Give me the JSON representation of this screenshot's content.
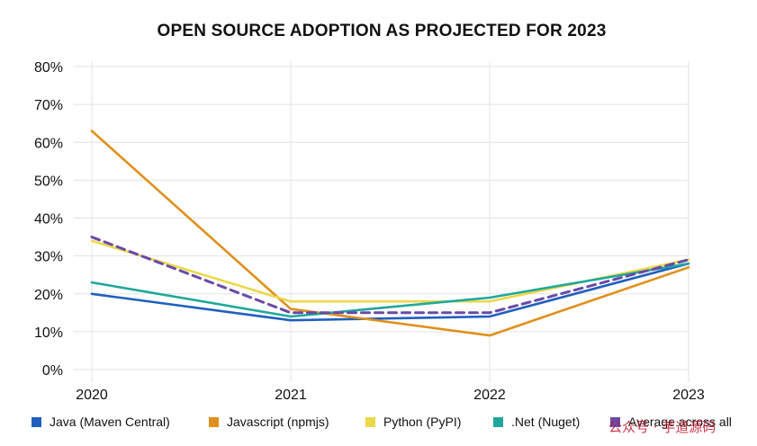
{
  "chart_data": {
    "type": "line",
    "title": "OPEN SOURCE ADOPTION AS PROJECTED FOR 2023",
    "x": [
      "2020",
      "2021",
      "2022",
      "2023"
    ],
    "ylim": [
      0,
      80
    ],
    "yticks": [
      "0%",
      "10%",
      "20%",
      "30%",
      "40%",
      "50%",
      "60%",
      "70%",
      "80%"
    ],
    "xlabel": "",
    "ylabel": "",
    "grid": true,
    "legend_position": "bottom",
    "series": [
      {
        "name": "Java (Maven Central)",
        "values": [
          20,
          13,
          14,
          28
        ],
        "color": "#1f5fbf",
        "dashed": false
      },
      {
        "name": "Javascript (npmjs)",
        "values": [
          63,
          16,
          9,
          27
        ],
        "color": "#e0901c",
        "dashed": false
      },
      {
        "name": "Python (PyPI)",
        "values": [
          34,
          18,
          18,
          29
        ],
        "color": "#ecd84a",
        "dashed": false
      },
      {
        "name": ".Net (Nuget)",
        "values": [
          23,
          14,
          19,
          28
        ],
        "color": "#1fa89b",
        "dashed": false
      },
      {
        "name": "Average across all",
        "values": [
          35,
          15,
          15,
          29
        ],
        "color": "#6a4aa8",
        "dashed": true
      }
    ]
  },
  "watermark": "公众号 · 芋道源码"
}
